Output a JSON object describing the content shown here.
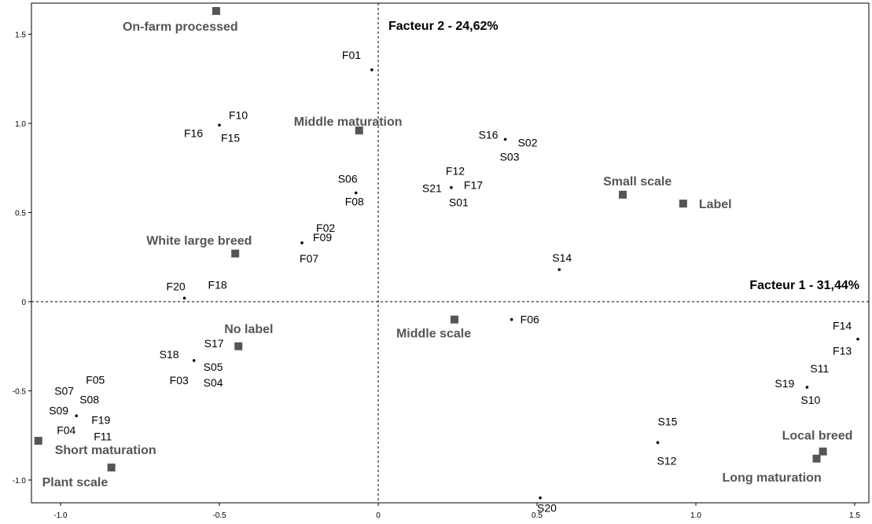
{
  "chart_data": {
    "type": "scatter",
    "title": "",
    "xlim": [
      -1.06,
      1.51
    ],
    "ylim": [
      -1.1,
      1.65
    ],
    "grid": false,
    "x_ticks": [
      "-1.0",
      "-0.5",
      "0",
      "0.5",
      "1.0",
      "1.5"
    ],
    "y_ticks": [
      "-1.0",
      "-0.5",
      "0",
      "0.5",
      "1.0",
      "1.5"
    ],
    "x_tick_values": [
      -1.0,
      -0.5,
      0,
      0.5,
      1.0,
      1.5
    ],
    "y_tick_values": [
      -1.0,
      -0.5,
      0,
      0.5,
      1.0,
      1.5
    ],
    "axis_titles": {
      "x": "Facteur 1  - 31,44%",
      "y": "Facteur 2  - 24,62%"
    },
    "points": [
      {
        "x": -0.02,
        "y": 1.3,
        "labels": [
          "F01"
        ]
      },
      {
        "x": -0.5,
        "y": 0.99,
        "labels": [
          "F10",
          "F16",
          "F15"
        ]
      },
      {
        "x": 0.4,
        "y": 0.91,
        "labels": [
          "S16",
          "S02",
          "S03"
        ]
      },
      {
        "x": 0.23,
        "y": 0.64,
        "labels": [
          "F12",
          "S21",
          "F17",
          "S01"
        ]
      },
      {
        "x": -0.07,
        "y": 0.61,
        "labels": [
          "S06",
          "F08"
        ]
      },
      {
        "x": -0.24,
        "y": 0.33,
        "labels": [
          "F02",
          "F09",
          "F07"
        ]
      },
      {
        "x": 0.57,
        "y": 0.18,
        "labels": [
          "S14"
        ]
      },
      {
        "x": -0.61,
        "y": 0.02,
        "labels": [
          "F20",
          "F18"
        ]
      },
      {
        "x": 0.42,
        "y": -0.1,
        "labels": [
          "F06"
        ]
      },
      {
        "x": -0.58,
        "y": -0.33,
        "labels": [
          "S17",
          "S18",
          "S05",
          "F03",
          "S04"
        ]
      },
      {
        "x": 1.51,
        "y": -0.21,
        "labels": [
          "F14",
          "F13"
        ]
      },
      {
        "x": 1.35,
        "y": -0.48,
        "labels": [
          "S11",
          "S19",
          "S10"
        ]
      },
      {
        "x": -0.95,
        "y": -0.64,
        "labels": [
          "F05",
          "S07",
          "S08",
          "S09",
          "F19",
          "F04",
          "F11"
        ]
      },
      {
        "x": 0.88,
        "y": -0.79,
        "labels": [
          "S15",
          "S12"
        ]
      },
      {
        "x": 0.51,
        "y": -1.1,
        "labels": [
          "S20"
        ]
      }
    ],
    "modalities": [
      {
        "name": "On-farm processed",
        "x": -0.51,
        "y": 1.63
      },
      {
        "name": "Middle maturation",
        "x": -0.06,
        "y": 0.96
      },
      {
        "name": "Small scale",
        "x": 0.77,
        "y": 0.6
      },
      {
        "name": "Label",
        "x": 0.96,
        "y": 0.55
      },
      {
        "name": "White large breed",
        "x": -0.45,
        "y": 0.27
      },
      {
        "name": "No label",
        "x": -0.44,
        "y": -0.25
      },
      {
        "name": "Middle scale",
        "x": 0.24,
        "y": -0.1
      },
      {
        "name": "Short maturation",
        "x": -1.07,
        "y": -0.78
      },
      {
        "name": "Plant scale",
        "x": -0.84,
        "y": -0.93
      },
      {
        "name": "Local breed",
        "x": 1.4,
        "y": -0.84
      },
      {
        "name": "Long maturation",
        "x": 1.38,
        "y": -0.88
      }
    ]
  }
}
